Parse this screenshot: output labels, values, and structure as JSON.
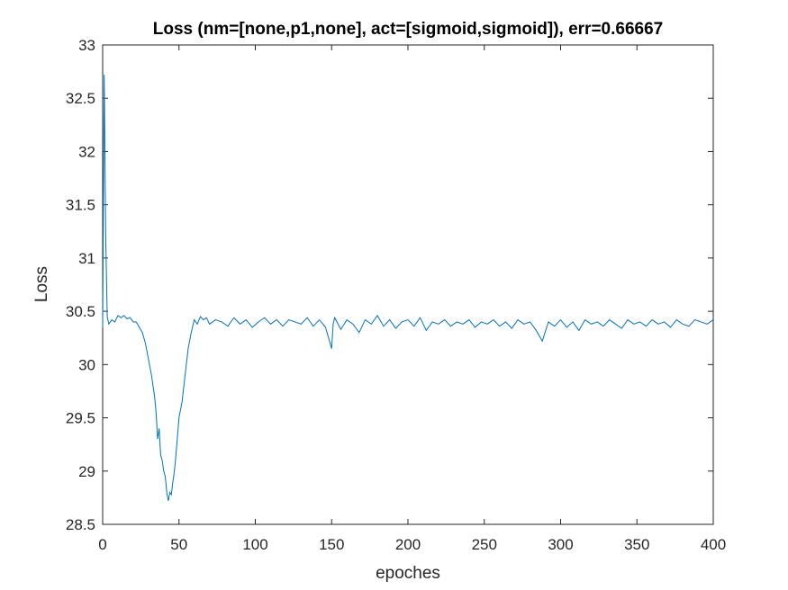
{
  "chart_data": {
    "type": "line",
    "title": "Loss (nm=[none,p1,none], act=[sigmoid,sigmoid]), err=0.66667",
    "xlabel": "epoches",
    "ylabel": "Loss",
    "xlim": [
      0,
      400
    ],
    "ylim": [
      28.5,
      33
    ],
    "xticks": [
      "0",
      "50",
      "100",
      "150",
      "200",
      "250",
      "300",
      "350",
      "400"
    ],
    "yticks": [
      "28.5",
      "29",
      "29.5",
      "30",
      "30.5",
      "31",
      "31.5",
      "32",
      "32.5",
      "33"
    ],
    "grid": false,
    "legend": "none",
    "line_color": "#0072BD",
    "series": [
      {
        "x": [
          0,
          1,
          2,
          3,
          4,
          6,
          8,
          10,
          12,
          14,
          16,
          18,
          20,
          22,
          24,
          26,
          28,
          30,
          32,
          34,
          35,
          36,
          37,
          38,
          39,
          40,
          41,
          42,
          43,
          44,
          45,
          46,
          47,
          48,
          50,
          52,
          54,
          56,
          58,
          60,
          62,
          64,
          66,
          68,
          70,
          74,
          78,
          82,
          86,
          90,
          94,
          98,
          102,
          106,
          110,
          114,
          118,
          122,
          126,
          130,
          134,
          138,
          142,
          146,
          150,
          151,
          152,
          156,
          160,
          164,
          168,
          172,
          176,
          180,
          184,
          188,
          192,
          196,
          200,
          204,
          208,
          212,
          216,
          220,
          224,
          228,
          232,
          236,
          240,
          244,
          248,
          252,
          256,
          260,
          264,
          268,
          272,
          276,
          280,
          284,
          288,
          292,
          296,
          300,
          304,
          308,
          312,
          316,
          320,
          324,
          328,
          332,
          336,
          340,
          344,
          348,
          352,
          356,
          360,
          364,
          368,
          372,
          376,
          380,
          384,
          388,
          392,
          396,
          400
        ],
        "values": [
          30.35,
          32.72,
          31.2,
          30.45,
          30.38,
          30.42,
          30.4,
          30.46,
          30.44,
          30.46,
          30.43,
          30.44,
          30.4,
          30.4,
          30.35,
          30.3,
          30.2,
          30.05,
          29.9,
          29.7,
          29.55,
          29.3,
          29.4,
          29.15,
          29.1,
          29.0,
          28.95,
          28.8,
          28.72,
          28.8,
          28.78,
          28.9,
          29.0,
          29.15,
          29.5,
          29.65,
          29.9,
          30.15,
          30.3,
          30.42,
          30.38,
          30.45,
          30.42,
          30.44,
          30.38,
          30.42,
          30.4,
          30.36,
          30.44,
          30.38,
          30.42,
          30.35,
          30.4,
          30.44,
          30.38,
          30.42,
          30.36,
          30.42,
          30.4,
          30.38,
          30.44,
          30.36,
          30.42,
          30.35,
          30.15,
          30.38,
          30.44,
          30.33,
          30.42,
          30.38,
          30.3,
          30.42,
          30.38,
          30.46,
          30.36,
          30.42,
          30.34,
          30.4,
          30.42,
          30.36,
          30.44,
          30.32,
          30.4,
          30.38,
          30.42,
          30.36,
          30.4,
          30.38,
          30.42,
          30.35,
          30.4,
          30.38,
          30.42,
          30.36,
          30.4,
          30.34,
          30.42,
          30.38,
          30.4,
          30.32,
          30.22,
          30.4,
          30.36,
          30.42,
          30.35,
          30.4,
          30.32,
          30.42,
          30.38,
          30.4,
          30.36,
          30.42,
          30.38,
          30.34,
          30.42,
          30.38,
          30.4,
          30.36,
          30.42,
          30.38,
          30.4,
          30.35,
          30.42,
          30.38,
          30.36,
          30.42,
          30.4,
          30.38,
          30.42
        ]
      }
    ]
  }
}
